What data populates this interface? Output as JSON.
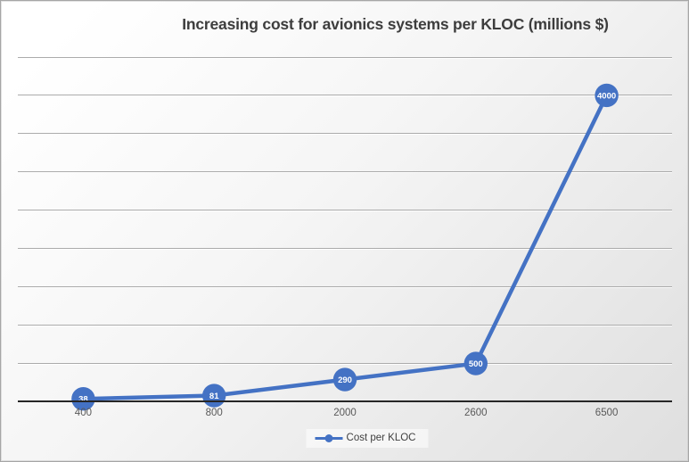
{
  "chart_data": {
    "type": "line",
    "title": "Increasing cost for avionics systems per KLOC (millions $)",
    "categories": [
      "400",
      "800",
      "2000",
      "2600",
      "6500"
    ],
    "series": [
      {
        "name": "Cost per KLOC",
        "values": [
          38,
          81,
          290,
          500,
          4000
        ]
      }
    ],
    "data_labels": [
      "38",
      "81",
      "290",
      "500",
      "4000"
    ],
    "xlabel": "",
    "ylabel": "",
    "ylim": [
      0,
      4500
    ],
    "gridline_step": 500,
    "grid": true,
    "legend_position": "bottom",
    "y_axis_tick_labels_visible": false,
    "colors": {
      "series_line": "#4472c4",
      "marker_fill": "#4472c4",
      "marker_label_text": "#ffffff",
      "gridline": "#ababab",
      "axis_line": "#262626",
      "axis_label_text": "#595959",
      "title_text": "#3d3d3d",
      "legend_text": "#404040",
      "background_top": "#ffffff",
      "background_bottom": "#dfdfdf"
    }
  }
}
